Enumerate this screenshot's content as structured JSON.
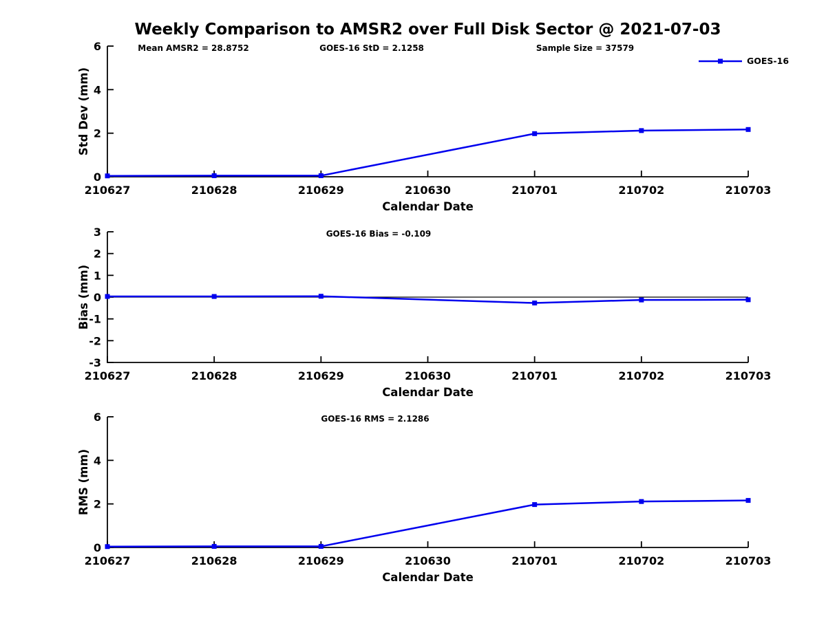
{
  "title": "Weekly Comparison to AMSR2 over Full Disk Sector @ 2021-07-03",
  "accent_color": "#0000EE",
  "chart_data": [
    {
      "type": "line",
      "panel": "std-dev",
      "categories": [
        "210627",
        "210628",
        "210629",
        "210630",
        "210701",
        "210702",
        "210703"
      ],
      "series": [
        {
          "name": "GOES-16",
          "color": "#0000EE",
          "x_idx": [
            0,
            1,
            2,
            4,
            5,
            6
          ],
          "values": [
            0.04,
            0.05,
            0.05,
            1.98,
            2.12,
            2.17
          ]
        }
      ],
      "xlabel": "Calendar Date",
      "ylabel": "Std Dev (mm)",
      "ylim": [
        0,
        6
      ],
      "yticks": [
        0,
        2,
        4,
        6
      ],
      "grid": false,
      "annotations": [
        "Mean AMSR2 = 28.8752",
        "GOES-16 StD = 2.1258",
        "Sample Size = 37579"
      ],
      "legend": {
        "label": "GOES-16",
        "position": "top-right"
      }
    },
    {
      "type": "line",
      "panel": "bias",
      "categories": [
        "210627",
        "210628",
        "210629",
        "210630",
        "210701",
        "210702",
        "210703"
      ],
      "series": [
        {
          "name": "GOES-16",
          "color": "#0000EE",
          "x_idx": [
            0,
            1,
            2,
            4,
            5,
            6
          ],
          "values": [
            0.03,
            0.03,
            0.04,
            -0.27,
            -0.13,
            -0.12
          ]
        }
      ],
      "xlabel": "Calendar Date",
      "ylabel": "Bias (mm)",
      "ylim": [
        -3,
        3
      ],
      "yticks": [
        3,
        2,
        1,
        0,
        -1,
        -2,
        -3
      ],
      "grid": false,
      "zero_line": true,
      "annotations": [
        "GOES-16 Bias  = -0.109"
      ]
    },
    {
      "type": "line",
      "panel": "rms",
      "categories": [
        "210627",
        "210628",
        "210629",
        "210630",
        "210701",
        "210702",
        "210703"
      ],
      "series": [
        {
          "name": "GOES-16",
          "color": "#0000EE",
          "x_idx": [
            0,
            1,
            2,
            4,
            5,
            6
          ],
          "values": [
            0.04,
            0.05,
            0.05,
            1.97,
            2.11,
            2.16
          ]
        }
      ],
      "xlabel": "Calendar Date",
      "ylabel": "RMS (mm)",
      "ylim": [
        0,
        6
      ],
      "yticks": [
        0,
        2,
        4,
        6
      ],
      "grid": false,
      "annotations": [
        "GOES-16 RMS = 2.1286"
      ]
    }
  ]
}
